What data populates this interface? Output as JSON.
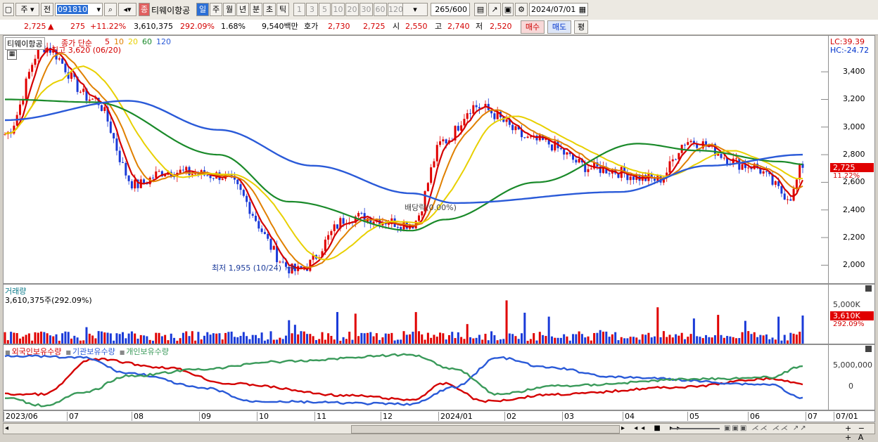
{
  "toolbar": {
    "market": "주",
    "prev_label": "전",
    "code": "091810",
    "name_badge": "종",
    "name": "티웨이항공",
    "periods": [
      "일",
      "주",
      "월",
      "년",
      "분",
      "초",
      "틱"
    ],
    "selected_period": "일",
    "numbers": [
      "1",
      "3",
      "5",
      "10",
      "20",
      "30",
      "60",
      "120"
    ],
    "count": "265",
    "count_total": "/600",
    "date": "2024/07/01"
  },
  "info": {
    "price": "2,725",
    "change": "275",
    "change_pct": "+11.22%",
    "volume": "3,610,375",
    "volume_pct": "292.09%",
    "turnover": "1.68%",
    "amount": "9,540백만",
    "quote_label": "호가",
    "ask": "2,730",
    "bid": "2,725",
    "open_label": "시",
    "open": "2,550",
    "high_label": "고",
    "high": "2,740",
    "low_label": "저",
    "low": "2,520",
    "buy_btn": "매수",
    "sell_btn": "매도",
    "avg_btn": "평"
  },
  "legend": {
    "name": "티웨이항공",
    "ma_label": "종가 단순",
    "ma_periods": [
      "5",
      "10",
      "20",
      "60",
      "120"
    ],
    "ma_colors": [
      "#d40000",
      "#e08000",
      "#e8d000",
      "#1a8a2a",
      "#2a5ad8"
    ],
    "lc": "LC:39.39",
    "hc": "HC:-24.72",
    "current_price": "2,725",
    "current_pct": "11.22%"
  },
  "annotations": {
    "high": "최고 3,620 (06/20)",
    "low": "최저 1,955 (10/24)",
    "dividend": "배당락(0.00%)"
  },
  "volume_panel": {
    "title": "거래량",
    "summary": "3,610,375주(292.09%)",
    "axis_label": "5,000K",
    "current": "3,610K",
    "current_pct": "292.09%"
  },
  "holding_panel": {
    "labels": [
      "외국인보유수량",
      "기관보유수량",
      "개인보유수량"
    ],
    "colors": [
      "#d40000",
      "#2a5ad8",
      "#3a9a5a"
    ],
    "axis_labels": [
      "5,000,000",
      "0"
    ]
  },
  "x_labels": [
    "2023/06",
    "07",
    "08",
    "09",
    "10",
    "11",
    "12",
    "2024/01",
    "02",
    "03",
    "04",
    "05",
    "06",
    "07",
    "07/01"
  ],
  "chart_data": {
    "type": "line",
    "price_axis": {
      "ticks": [
        2000,
        2200,
        2400,
        2600,
        2800,
        3000,
        3200,
        3400
      ],
      "range": [
        1890,
        3640
      ]
    },
    "close_keypoints": {
      "x": [
        "2023/06/01",
        "2023/06/20",
        "2023/07/15",
        "2023/08/05",
        "2023/08/20",
        "2023/09/15",
        "2023/10/24",
        "2023/11/20",
        "2023/12/20",
        "2024/01/05",
        "2024/01/20",
        "2024/02/20",
        "2024/03/20",
        "2024/04/20",
        "2024/05/05",
        "2024/06/05",
        "2024/06/25",
        "2024/07/01"
      ],
      "y": [
        2950,
        3580,
        3200,
        2580,
        2680,
        2650,
        1960,
        2350,
        2300,
        2900,
        3150,
        2900,
        2700,
        2620,
        2900,
        2720,
        2500,
        2725
      ]
    },
    "ma120_keypoints": {
      "x": [
        "2023/06/01",
        "2023/08/01",
        "2023/09/15",
        "2023/11/01",
        "2023/12/20",
        "2024/01/10",
        "2024/04/01",
        "2024/05/15",
        "2024/07/01"
      ],
      "y": [
        3050,
        3190,
        2980,
        2720,
        2520,
        2450,
        2530,
        2720,
        2800
      ]
    },
    "ma60_keypoints": {
      "x": [
        "2023/06/01",
        "2023/07/15",
        "2023/09/15",
        "2023/10/20",
        "2023/12/20",
        "2024/01/05",
        "2024/02/20",
        "2024/04/10",
        "2024/05/10",
        "2024/06/20",
        "2024/07/01"
      ],
      "y": [
        3200,
        3180,
        2800,
        2460,
        2250,
        2330,
        2600,
        2880,
        2830,
        2750,
        2730
      ]
    },
    "volume_axis": {
      "ticks": [
        5000
      ],
      "unit": "K"
    }
  }
}
